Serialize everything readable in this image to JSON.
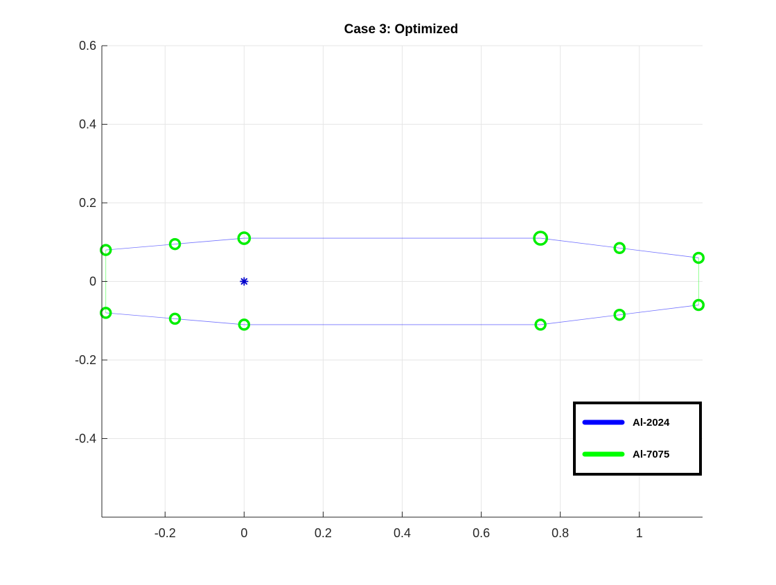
{
  "chart_data": {
    "type": "scatter",
    "title": "Case 3: Optimized",
    "xlabel": "",
    "ylabel": "",
    "xlim": [
      -0.36,
      1.16
    ],
    "ylim": [
      -0.6,
      0.6
    ],
    "x_ticks": [
      -0.2,
      0,
      0.2,
      0.4,
      0.6,
      0.8,
      1
    ],
    "x_tick_labels": [
      "-0.2",
      "0",
      "0.2",
      "0.4",
      "0.6",
      "0.8",
      "1"
    ],
    "y_ticks": [
      -0.4,
      -0.2,
      0,
      0.2,
      0.4,
      0.6
    ],
    "y_tick_labels": [
      "-0.4",
      "-0.2",
      "0",
      "0.2",
      "0.4",
      "0.6"
    ],
    "grid": true,
    "legend_position": "bottom-right",
    "legend": [
      {
        "label": "Al-2024",
        "color": "#0000ff"
      },
      {
        "label": "Al-7075",
        "color": "#00ff00"
      }
    ],
    "nodes": [
      {
        "x": -0.35,
        "y": 0.08,
        "size": 1.0
      },
      {
        "x": -0.175,
        "y": 0.095,
        "size": 1.0
      },
      {
        "x": 0.0,
        "y": 0.11,
        "size": 1.15
      },
      {
        "x": 0.75,
        "y": 0.11,
        "size": 1.3
      },
      {
        "x": 0.95,
        "y": 0.085,
        "size": 1.0
      },
      {
        "x": 1.15,
        "y": 0.06,
        "size": 1.0
      },
      {
        "x": 1.15,
        "y": -0.06,
        "size": 1.0
      },
      {
        "x": 0.95,
        "y": -0.085,
        "size": 1.0
      },
      {
        "x": 0.75,
        "y": -0.11,
        "size": 1.0
      },
      {
        "x": 0.0,
        "y": -0.11,
        "size": 1.0
      },
      {
        "x": -0.175,
        "y": -0.095,
        "size": 1.0
      },
      {
        "x": -0.35,
        "y": -0.08,
        "size": 1.0
      }
    ],
    "panels": [
      {
        "from": 0,
        "to": 1,
        "material": "Al-2024"
      },
      {
        "from": 1,
        "to": 2,
        "material": "Al-2024"
      },
      {
        "from": 2,
        "to": 3,
        "material": "Al-2024"
      },
      {
        "from": 3,
        "to": 4,
        "material": "Al-2024"
      },
      {
        "from": 4,
        "to": 5,
        "material": "Al-2024"
      },
      {
        "from": 5,
        "to": 6,
        "material": "Al-7075"
      },
      {
        "from": 6,
        "to": 7,
        "material": "Al-2024"
      },
      {
        "from": 7,
        "to": 8,
        "material": "Al-2024"
      },
      {
        "from": 8,
        "to": 9,
        "material": "Al-2024"
      },
      {
        "from": 9,
        "to": 10,
        "material": "Al-2024"
      },
      {
        "from": 10,
        "to": 11,
        "material": "Al-2024"
      },
      {
        "from": 11,
        "to": 0,
        "material": "Al-7075"
      }
    ],
    "marker": {
      "x": 0.0,
      "y": 0.0,
      "symbol": "asterisk",
      "color": "#0000cc"
    },
    "colors": {
      "node": "#00ee00",
      "axis": "#262626",
      "grid": "#e6e6e6"
    }
  }
}
